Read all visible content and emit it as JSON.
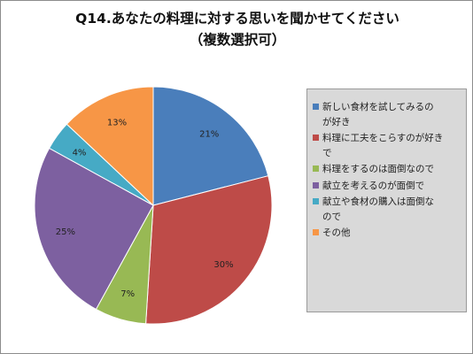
{
  "chart_data": {
    "type": "pie",
    "title": "Q14.あなたの料理に対する思いを聞かせてください",
    "subtitle": "（複数選択可）",
    "categories": [
      "新しい食材を試してみるのが好き",
      "料理に工夫をこらすのが好きで",
      "料理をするのは面倒なので",
      "献立を考えるのが面倒で",
      "献立や食材の購入は面倒なので",
      "その他"
    ],
    "legend_lines": [
      [
        "新しい食材を試してみるの",
        "が好き"
      ],
      [
        "料理に工夫をこらすのが好き",
        "で"
      ],
      [
        "料理をするのは面倒なので"
      ],
      [
        "献立を考えるのが面倒で"
      ],
      [
        "献立や食材の購入は面倒な",
        "ので"
      ],
      [
        "その他"
      ]
    ],
    "values": [
      21,
      30,
      7,
      25,
      4,
      13
    ],
    "labels": [
      "21%",
      "30%",
      "7%",
      "25%",
      "4%",
      "13%"
    ],
    "colors": [
      "#4a7ebb",
      "#be4b48",
      "#98b954",
      "#7d60a0",
      "#46aac5",
      "#f79646"
    ],
    "legend_position": "right"
  }
}
